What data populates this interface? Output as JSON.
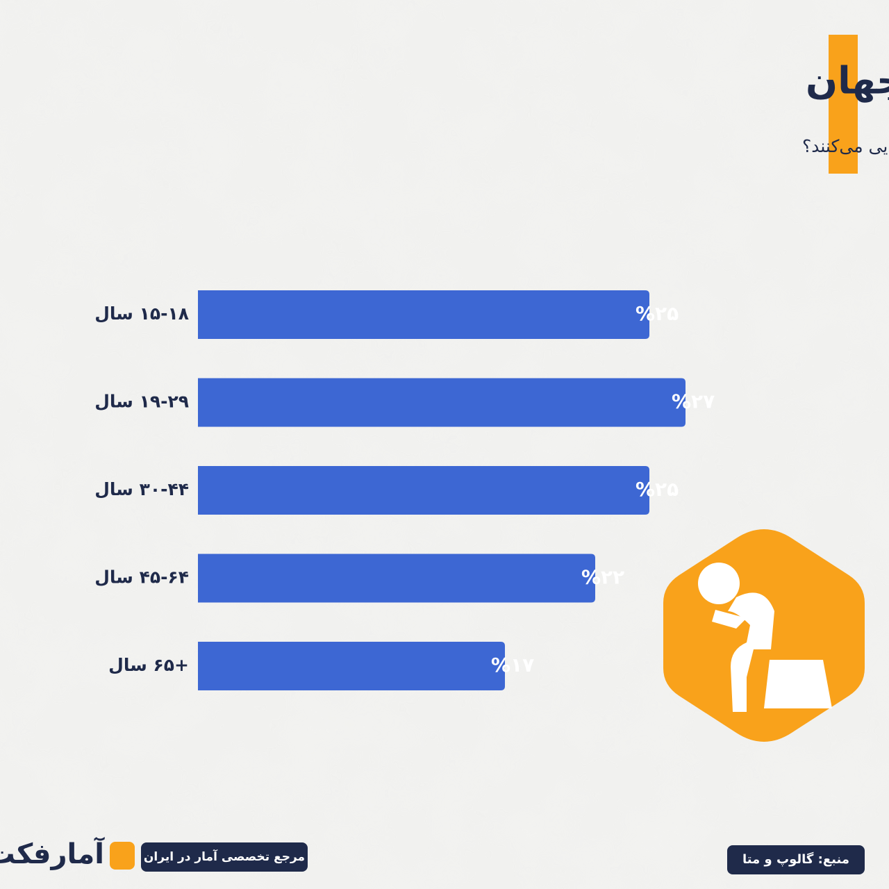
{
  "chart_data": {
    "type": "bar",
    "orientation": "horizontal",
    "title": "میزان احساس تنهایی در جهان",
    "subtitle": "هر کدام از گروه‌های سنی چه میزان احساس تنهایی می‌کنند؟",
    "categories": [
      "۱۵-۱۸ سال",
      "۱۹-۲۹ سال",
      "۳۰-۴۴ سال",
      "۴۵-۶۴ سال",
      "+۶۵ سال"
    ],
    "values": [
      25,
      27,
      25,
      22,
      17
    ],
    "value_labels": [
      "%۲۵",
      "%۲۷",
      "%۲۵",
      "%۲۲",
      "%۱۷"
    ],
    "color": "#3d67d3"
  },
  "footer": {
    "brand": "آمارفکت",
    "tagline": "مرجع تخصصی آمار در ایران",
    "source": "منبع: گالوپ و متا"
  }
}
